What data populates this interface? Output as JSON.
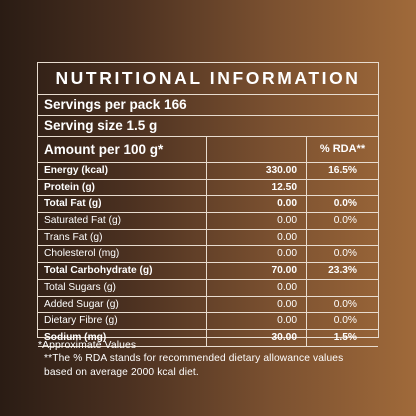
{
  "title": "NUTRITIONAL INFORMATION",
  "servings_per_pack": "Servings per pack 166",
  "serving_size": "Serving size 1.5 g",
  "amount_header": "Amount per 100 g*",
  "rda_header": "% RDA**",
  "rows": [
    {
      "name": "Energy (kcal)",
      "value": "330.00",
      "rda": "16.5%",
      "bold": true
    },
    {
      "name": "Protein (g)",
      "value": "12.50",
      "rda": "",
      "bold": true
    },
    {
      "name": "Total Fat (g)",
      "value": "0.00",
      "rda": "0.0%",
      "bold": true
    },
    {
      "name": "Saturated Fat (g)",
      "value": "0.00",
      "rda": "0.0%",
      "bold": false
    },
    {
      "name": "Trans Fat (g)",
      "value": "0.00",
      "rda": "",
      "bold": false
    },
    {
      "name": "Cholesterol (mg)",
      "value": "0.00",
      "rda": "0.0%",
      "bold": false
    },
    {
      "name": "Total Carbohydrate (g)",
      "value": "70.00",
      "rda": "23.3%",
      "bold": true
    },
    {
      "name": "Total Sugars (g)",
      "value": "0.00",
      "rda": "",
      "bold": false
    },
    {
      "name": "Added  Sugar (g)",
      "value": "0.00",
      "rda": "0.0%",
      "bold": false
    },
    {
      "name": "Dietary Fibre (g)",
      "value": "0.00",
      "rda": "0.0%",
      "bold": false
    },
    {
      "name": "Sodium (mg)",
      "value": "30.00",
      "rda": "1.5%",
      "bold": true
    }
  ],
  "footnote": "**The % RDA stands for recommended dietary allowance values based on average 2000 kcal diet.",
  "approx_note": "*Approximate Values",
  "colors": {
    "border": "#e8dccf",
    "text": "#ffffff",
    "bg_dark": "#2a1c14",
    "bg_light": "#a06a3a"
  }
}
